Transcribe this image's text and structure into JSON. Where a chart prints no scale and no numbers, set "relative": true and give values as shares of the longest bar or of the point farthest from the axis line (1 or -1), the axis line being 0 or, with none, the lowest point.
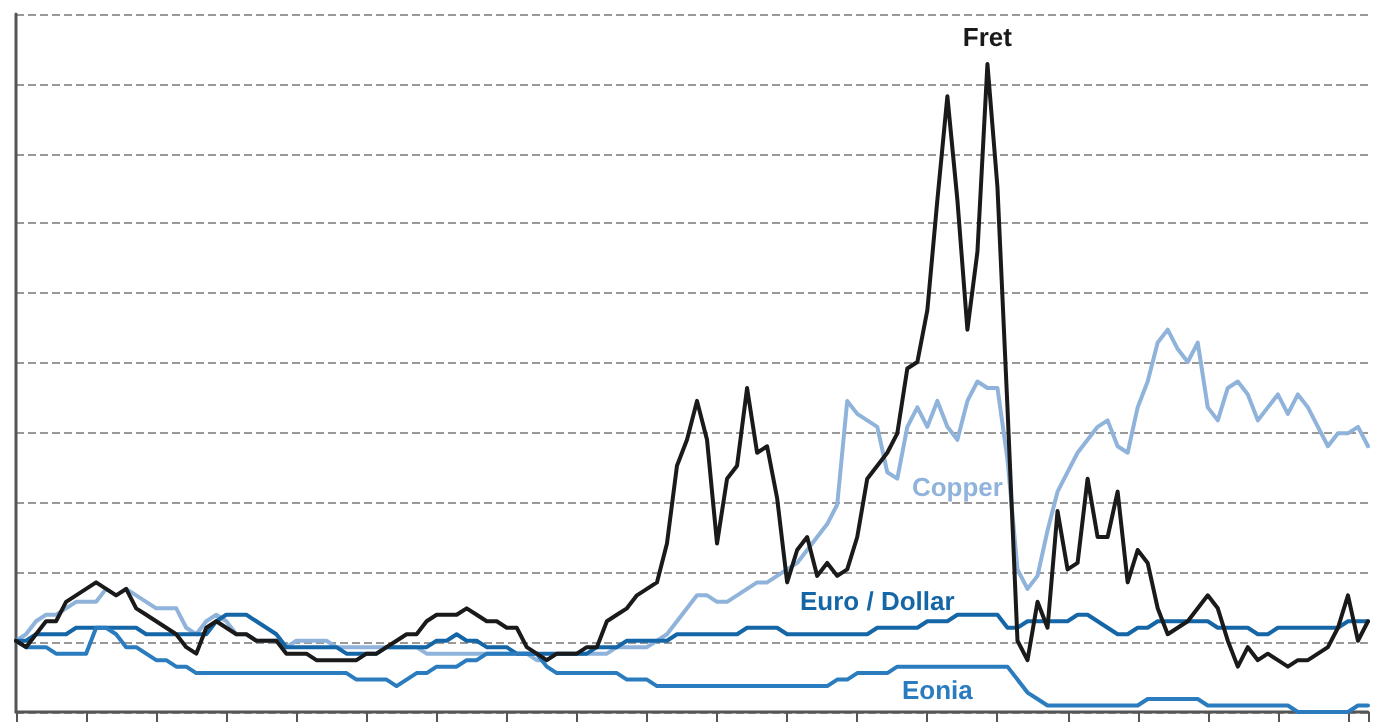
{
  "chart_data": {
    "type": "line",
    "relative": true,
    "grid": "y",
    "marker": "none",
    "line_style": "solid",
    "categories": [
      null,
      null,
      null,
      null,
      null,
      null,
      null,
      null,
      null,
      null,
      null,
      null,
      null,
      null,
      null,
      null,
      null,
      null,
      null,
      null,
      null,
      null,
      null,
      null,
      null,
      null,
      null,
      null,
      null,
      null,
      null,
      null,
      null,
      null,
      null,
      null,
      null,
      null,
      null,
      null,
      null,
      null,
      null,
      null,
      null,
      null,
      null,
      null,
      null,
      null,
      null,
      null,
      null,
      null,
      null,
      null,
      null,
      null,
      null,
      null,
      null,
      null,
      null,
      null,
      null,
      null,
      null,
      null,
      null,
      null,
      null,
      null,
      null,
      null,
      null,
      null,
      null,
      null,
      null,
      null,
      null,
      null,
      null,
      null,
      null,
      null,
      null,
      null,
      null,
      null,
      null,
      null,
      null,
      null,
      null,
      null,
      null,
      null,
      null,
      null,
      null,
      null,
      null,
      null,
      null,
      null,
      null,
      null,
      null,
      null,
      null,
      null,
      null,
      null,
      null,
      null,
      null,
      null,
      null,
      null,
      null,
      null,
      null,
      null,
      null,
      null,
      null,
      null,
      null,
      null,
      null,
      null,
      null,
      null,
      null,
      null
    ],
    "series": [
      {
        "name": "Fret",
        "color": "#1a1a1a",
        "values": [
          0.11,
          0.1,
          0.12,
          0.14,
          0.14,
          0.17,
          0.18,
          0.19,
          0.2,
          0.19,
          0.18,
          0.19,
          0.16,
          0.15,
          0.14,
          0.13,
          0.12,
          0.1,
          0.09,
          0.13,
          0.14,
          0.13,
          0.12,
          0.12,
          0.11,
          0.11,
          0.11,
          0.09,
          0.09,
          0.09,
          0.08,
          0.08,
          0.08,
          0.08,
          0.08,
          0.09,
          0.09,
          0.1,
          0.11,
          0.12,
          0.12,
          0.14,
          0.15,
          0.15,
          0.15,
          0.16,
          0.15,
          0.14,
          0.14,
          0.13,
          0.13,
          0.1,
          0.09,
          0.08,
          0.09,
          0.09,
          0.09,
          0.1,
          0.1,
          0.14,
          0.15,
          0.16,
          0.18,
          0.19,
          0.2,
          0.26,
          0.38,
          0.42,
          0.48,
          0.42,
          0.26,
          0.36,
          0.38,
          0.5,
          0.4,
          0.41,
          0.33,
          0.2,
          0.25,
          0.27,
          0.21,
          0.23,
          0.21,
          0.22,
          0.27,
          0.36,
          0.38,
          0.4,
          0.43,
          0.53,
          0.54,
          0.62,
          0.79,
          0.95,
          0.79,
          0.59,
          0.71,
          1,
          0.81,
          0.47,
          0.11,
          0.08,
          0.17,
          0.13,
          0.31,
          0.22,
          0.23,
          0.36,
          0.27,
          0.27,
          0.34,
          0.2,
          0.25,
          0.23,
          0.16,
          0.12,
          0.13,
          0.14,
          0.16,
          0.18,
          0.16,
          0.11,
          0.07,
          0.1,
          0.08,
          0.09,
          0.08,
          0.07,
          0.08,
          0.08,
          0.09,
          0.1,
          0.13,
          0.18,
          0.11,
          0.14
        ]
      },
      {
        "name": "Copper",
        "color": "#8fb3da",
        "values": [
          0.11,
          0.12,
          0.14,
          0.15,
          0.15,
          0.16,
          0.17,
          0.17,
          0.17,
          0.19,
          0.18,
          0.19,
          0.18,
          0.17,
          0.16,
          0.16,
          0.16,
          0.13,
          0.12,
          0.14,
          0.15,
          0.14,
          0.12,
          0.12,
          0.11,
          0.11,
          0.11,
          0.1,
          0.11,
          0.11,
          0.11,
          0.11,
          0.1,
          0.1,
          0.1,
          0.1,
          0.1,
          0.1,
          0.1,
          0.1,
          0.1,
          0.09,
          0.09,
          0.09,
          0.09,
          0.09,
          0.09,
          0.09,
          0.09,
          0.09,
          0.09,
          0.09,
          0.08,
          0.08,
          0.09,
          0.09,
          0.09,
          0.09,
          0.09,
          0.09,
          0.1,
          0.1,
          0.1,
          0.1,
          0.11,
          0.12,
          0.14,
          0.16,
          0.18,
          0.18,
          0.17,
          0.17,
          0.18,
          0.19,
          0.2,
          0.2,
          0.21,
          0.22,
          0.23,
          0.25,
          0.27,
          0.29,
          0.32,
          0.48,
          0.46,
          0.45,
          0.44,
          0.37,
          0.36,
          0.44,
          0.47,
          0.44,
          0.48,
          0.44,
          0.42,
          0.48,
          0.51,
          0.5,
          0.5,
          0.39,
          0.22,
          0.19,
          0.21,
          0.28,
          0.34,
          0.37,
          0.4,
          0.42,
          0.44,
          0.45,
          0.41,
          0.4,
          0.47,
          0.51,
          0.57,
          0.59,
          0.56,
          0.54,
          0.57,
          0.47,
          0.45,
          0.5,
          0.51,
          0.49,
          0.45,
          0.47,
          0.49,
          0.46,
          0.49,
          0.47,
          0.44,
          0.41,
          0.43,
          0.43,
          0.44,
          0.41
        ]
      },
      {
        "name": "Euro / Dollar",
        "color": "#1566a6",
        "values": [
          0.11,
          0.11,
          0.12,
          0.12,
          0.12,
          0.12,
          0.13,
          0.13,
          0.13,
          0.13,
          0.13,
          0.13,
          0.13,
          0.12,
          0.12,
          0.12,
          0.12,
          0.12,
          0.12,
          0.12,
          0.14,
          0.15,
          0.15,
          0.15,
          0.14,
          0.13,
          0.12,
          0.1,
          0.1,
          0.1,
          0.1,
          0.1,
          0.1,
          0.09,
          0.09,
          0.09,
          0.09,
          0.1,
          0.1,
          0.1,
          0.1,
          0.1,
          0.11,
          0.11,
          0.12,
          0.11,
          0.11,
          0.1,
          0.1,
          0.1,
          0.09,
          0.09,
          0.09,
          0.09,
          0.09,
          0.09,
          0.09,
          0.09,
          0.1,
          0.1,
          0.1,
          0.11,
          0.11,
          0.11,
          0.11,
          0.11,
          0.12,
          0.12,
          0.12,
          0.12,
          0.12,
          0.12,
          0.12,
          0.13,
          0.13,
          0.13,
          0.13,
          0.12,
          0.12,
          0.12,
          0.12,
          0.12,
          0.12,
          0.12,
          0.12,
          0.12,
          0.13,
          0.13,
          0.13,
          0.13,
          0.13,
          0.14,
          0.14,
          0.14,
          0.15,
          0.15,
          0.15,
          0.15,
          0.15,
          0.13,
          0.13,
          0.14,
          0.14,
          0.14,
          0.14,
          0.14,
          0.15,
          0.15,
          0.14,
          0.13,
          0.12,
          0.12,
          0.13,
          0.13,
          0.14,
          0.14,
          0.14,
          0.14,
          0.14,
          0.14,
          0.13,
          0.13,
          0.13,
          0.13,
          0.12,
          0.12,
          0.13,
          0.13,
          0.13,
          0.13,
          0.13,
          0.13,
          0.13,
          0.14,
          0.14,
          0.14
        ]
      },
      {
        "name": "Eonia",
        "color": "#2b7cbf",
        "values": [
          0.11,
          0.1,
          0.1,
          0.1,
          0.09,
          0.09,
          0.09,
          0.09,
          0.13,
          0.13,
          0.12,
          0.1,
          0.1,
          0.09,
          0.08,
          0.08,
          0.07,
          0.07,
          0.06,
          0.06,
          0.06,
          0.06,
          0.06,
          0.06,
          0.06,
          0.06,
          0.06,
          0.06,
          0.06,
          0.06,
          0.06,
          0.06,
          0.06,
          0.06,
          0.05,
          0.05,
          0.05,
          0.05,
          0.04,
          0.05,
          0.06,
          0.06,
          0.07,
          0.07,
          0.07,
          0.08,
          0.08,
          0.09,
          0.09,
          0.09,
          0.09,
          0.09,
          0.09,
          0.07,
          0.06,
          0.06,
          0.06,
          0.06,
          0.06,
          0.06,
          0.06,
          0.05,
          0.05,
          0.05,
          0.04,
          0.04,
          0.04,
          0.04,
          0.04,
          0.04,
          0.04,
          0.04,
          0.04,
          0.04,
          0.04,
          0.04,
          0.04,
          0.04,
          0.04,
          0.04,
          0.04,
          0.04,
          0.05,
          0.05,
          0.06,
          0.06,
          0.06,
          0.06,
          0.07,
          0.07,
          0.07,
          0.07,
          0.07,
          0.07,
          0.07,
          0.07,
          0.07,
          0.07,
          0.07,
          0.07,
          0.05,
          0.03,
          0.02,
          0.01,
          0.01,
          0.01,
          0.01,
          0.01,
          0.01,
          0.01,
          0.01,
          0.01,
          0.01,
          0.02,
          0.02,
          0.02,
          0.02,
          0.02,
          0.02,
          0.01,
          0.01,
          0.01,
          0.01,
          0.01,
          0.01,
          0.01,
          0.01,
          0.01,
          0,
          0,
          0,
          0,
          0,
          0,
          0.01,
          0.01
        ]
      }
    ]
  }
}
